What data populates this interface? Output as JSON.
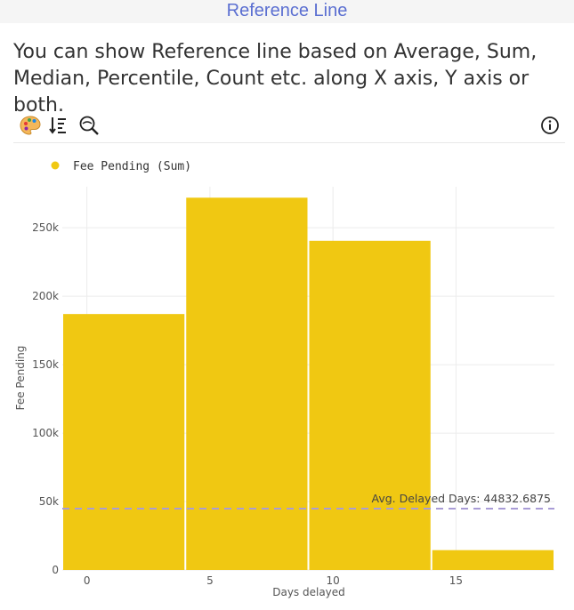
{
  "header": {
    "title": "Reference Line"
  },
  "description": "You can show Reference line based on Average, Sum, Median, Percentile, Count etc. along X axis, Y axis or both.",
  "toolbar": {
    "icons": [
      "palette-icon",
      "sort-icon",
      "zoom-icon",
      "info-icon"
    ]
  },
  "colors": {
    "bar": "#f0c812",
    "reference_line": "#a99cd6",
    "title": "#5b6fd1"
  },
  "chart_data": {
    "type": "bar",
    "legend": {
      "label": "Fee Pending (Sum)",
      "placement": "top-left"
    },
    "xlabel": "Days delayed",
    "ylabel": "Fee Pending",
    "xlim": [
      -1,
      19
    ],
    "ylim": [
      0,
      280000
    ],
    "x_ticks": [
      0,
      5,
      10,
      15
    ],
    "x_tick_labels": [
      "0",
      "5",
      "10",
      "15"
    ],
    "y_ticks": [
      0,
      50000,
      100000,
      150000,
      200000,
      250000
    ],
    "y_tick_labels": [
      "0",
      "50k",
      "100k",
      "150k",
      "200k",
      "250k"
    ],
    "grid": true,
    "bins": [
      {
        "start": -1,
        "end": 4,
        "value": 187000
      },
      {
        "start": 4,
        "end": 9,
        "value": 272000
      },
      {
        "start": 9,
        "end": 14,
        "value": 240500
      },
      {
        "start": 14,
        "end": 19,
        "value": 14500
      }
    ],
    "reference_line": {
      "axis": "y",
      "value": 44832.6875,
      "label": "Avg. Delayed Days: 44832.6875"
    }
  }
}
